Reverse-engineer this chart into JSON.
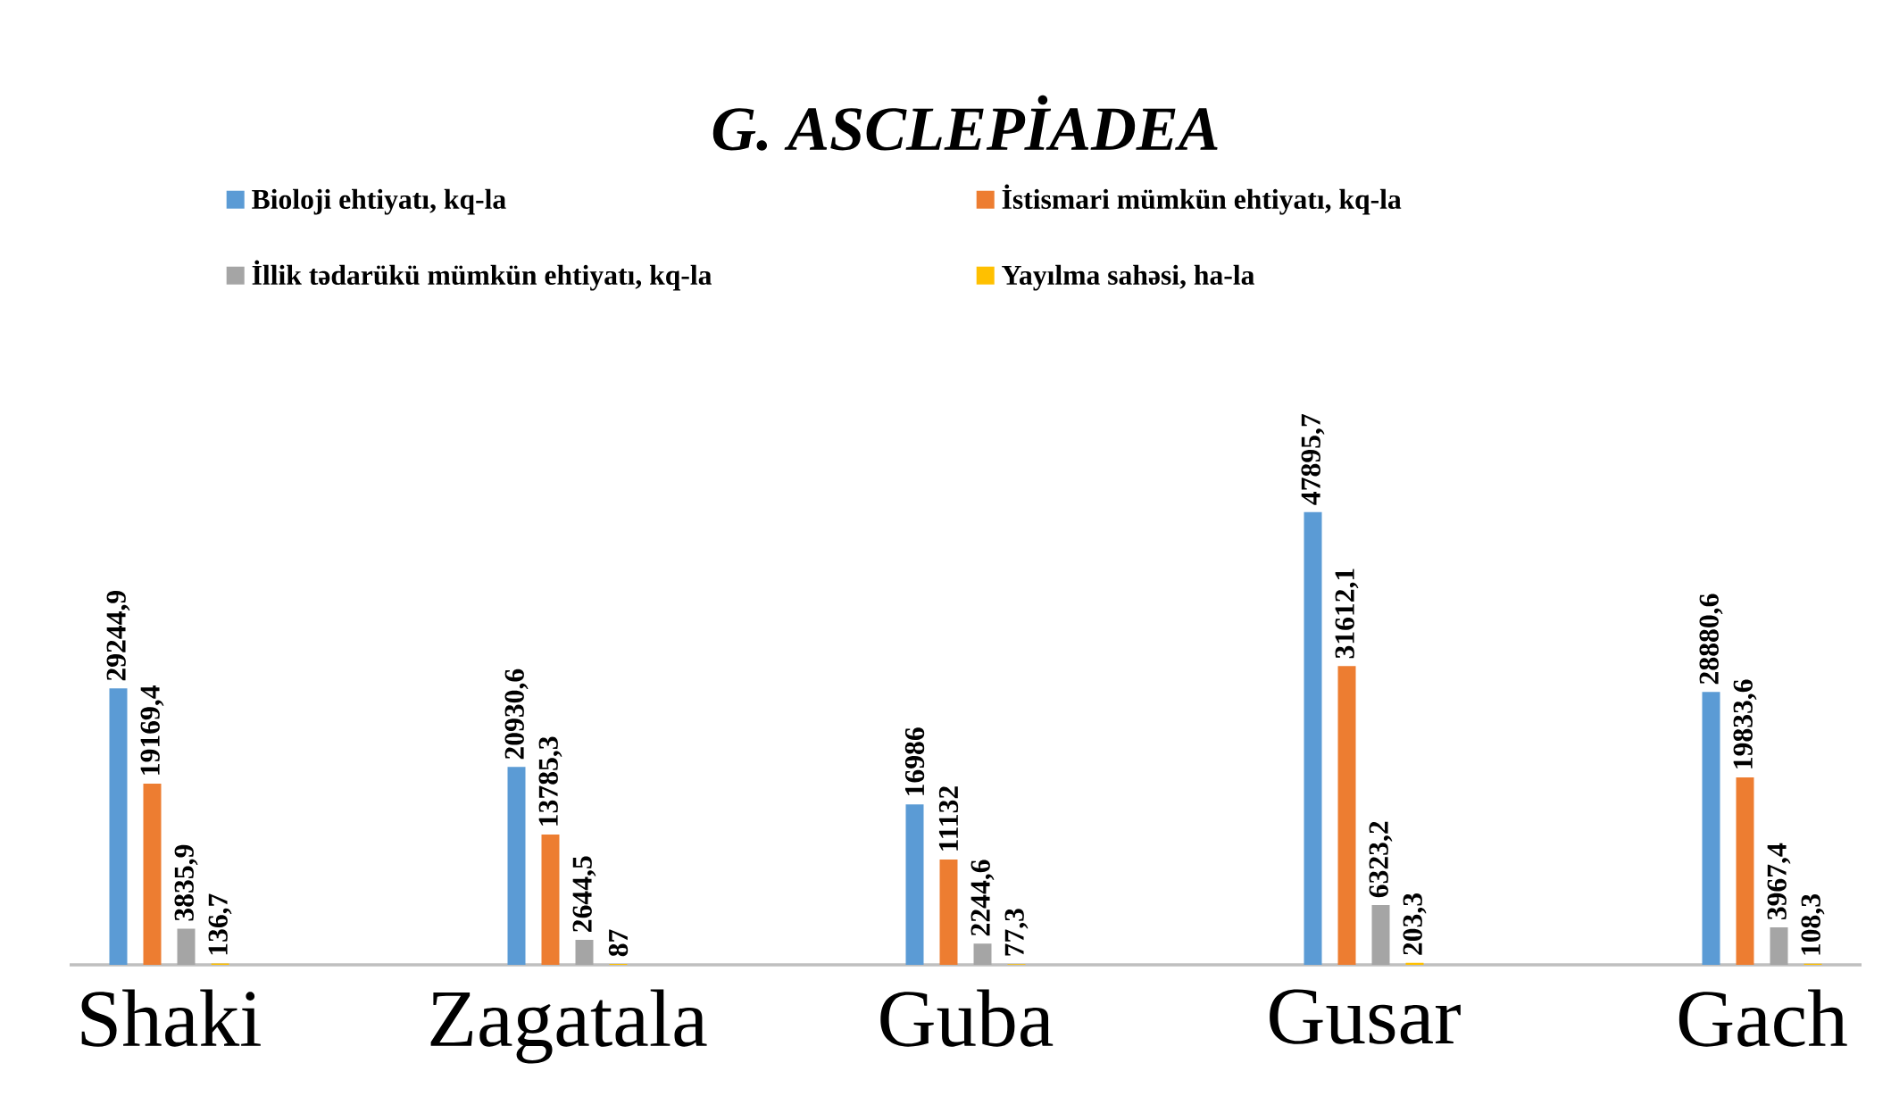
{
  "chart_data": {
    "type": "bar",
    "title": "*G. ASCLEPİADEA*",
    "categories": [
      "Shaki",
      "Zagatala",
      "Guba",
      "Gusar",
      "Gach"
    ],
    "series": [
      {
        "name": "Bioloji ehtiyatı, kq-la",
        "color": "#5b9bd5",
        "values": [
          29244.9,
          20930.6,
          16986,
          47895.7,
          28880.6
        ],
        "value_labels": [
          "29244,9",
          "20930,6",
          "16986",
          "47895,7",
          "28880,6"
        ]
      },
      {
        "name": "İstismari mümkün ehtiyatı, kq-la",
        "color": "#ed7d31",
        "values": [
          19169.4,
          13785.3,
          11132,
          31612.1,
          19833.6
        ],
        "value_labels": [
          "19169,4",
          "13785,3",
          "11132",
          "31612,1",
          "19833,6"
        ]
      },
      {
        "name": "İllik tədarükü mümkün ehtiyatı, kq-la",
        "color": "#a5a5a5",
        "values": [
          3835.9,
          2644.5,
          2244.6,
          6323.2,
          3967.4
        ],
        "value_labels": [
          "3835,9",
          "2644,5",
          "2244,6",
          "6323,2",
          "3967,4"
        ]
      },
      {
        "name": "Yayılma sahəsi, ha-la",
        "color": "#ffc000",
        "values": [
          136.7,
          87,
          77.3,
          203.3,
          108.3
        ],
        "value_labels": [
          "136,7",
          "87",
          "77,3",
          "203,3",
          "108,3"
        ]
      }
    ],
    "legend": "top"
  }
}
